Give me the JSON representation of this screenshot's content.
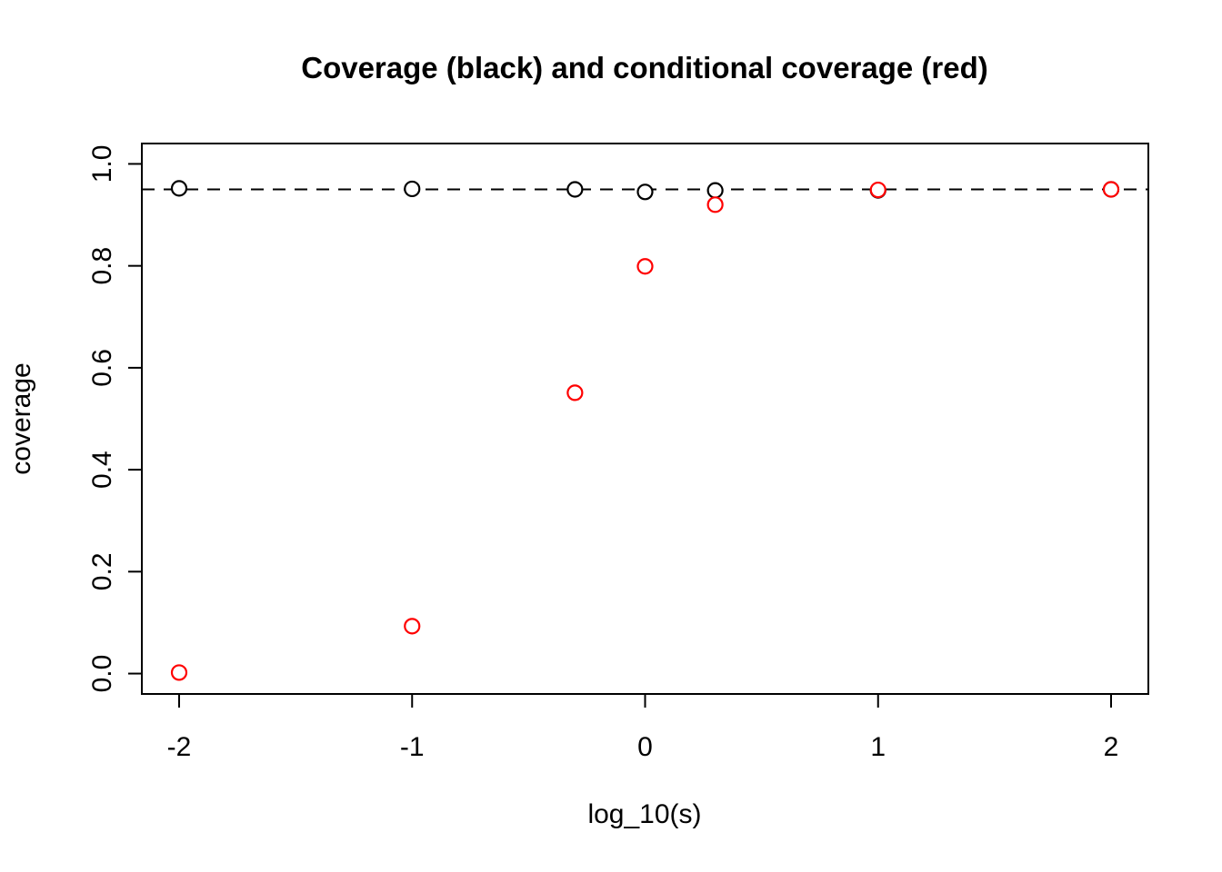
{
  "chart_data": {
    "type": "scatter",
    "title": "Coverage (black) and conditional coverage (red)",
    "xlabel": "log_10(s)",
    "ylabel": "coverage",
    "xlim": [
      -2.16,
      2.16
    ],
    "ylim": [
      -0.04,
      1.04
    ],
    "x_ticks": [
      -2,
      -1,
      0,
      1,
      2
    ],
    "x_tick_labels": [
      "-2",
      "-1",
      "0",
      "1",
      "2"
    ],
    "y_ticks": [
      0.0,
      0.2,
      0.4,
      0.6,
      0.8,
      1.0
    ],
    "y_tick_labels": [
      "0.0",
      "0.2",
      "0.4",
      "0.6",
      "0.8",
      "1.0"
    ],
    "grid": false,
    "legend_position": "none",
    "marker": "open-circle",
    "reference_line": {
      "y": 0.95,
      "style": "dashed",
      "color": "#000000"
    },
    "series": [
      {
        "name": "Coverage",
        "color": "#000000",
        "x": [
          -2,
          -1,
          -0.301,
          0,
          0.301,
          1,
          2
        ],
        "y": [
          0.952,
          0.951,
          0.95,
          0.945,
          0.948,
          0.948,
          0.95
        ]
      },
      {
        "name": "conditional coverage",
        "color": "#FF0000",
        "x": [
          -2,
          -1,
          -0.301,
          0,
          0.301,
          1,
          2
        ],
        "y": [
          0.002,
          0.093,
          0.551,
          0.799,
          0.92,
          0.949,
          0.95
        ]
      }
    ],
    "colors": {
      "foreground": "#000000",
      "accent_red": "#FF0000",
      "background": "#FFFFFF"
    }
  }
}
